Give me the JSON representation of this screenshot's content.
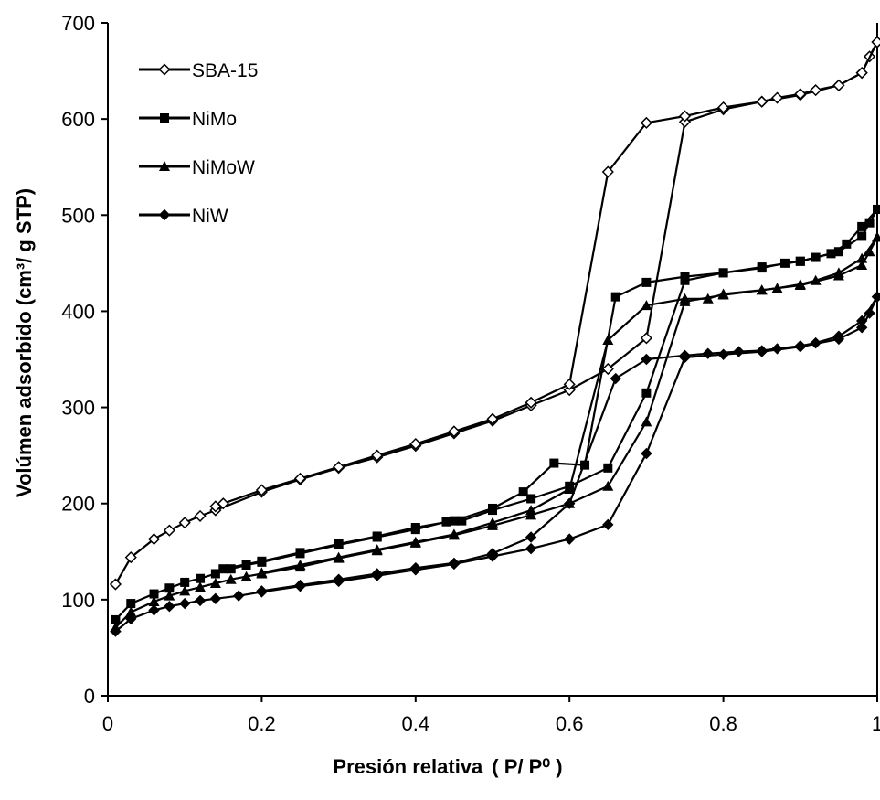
{
  "chart_data": {
    "type": "scatter",
    "xlabel": "Presión relativa",
    "xlabel_units": "( P/ P⁰ )",
    "ylabel": "Volúmen adsorbido (cm³/ g STP)",
    "xlim": [
      0,
      1
    ],
    "ylim": [
      0,
      700
    ],
    "xticks": [
      "0",
      "0.2",
      "0.4",
      "0.6",
      "0.8",
      "1"
    ],
    "yticks": [
      "0",
      "100",
      "200",
      "300",
      "400",
      "500",
      "600",
      "700"
    ],
    "grid": false,
    "legend_position": "top-left",
    "series": [
      {
        "name": "SBA-15",
        "marker": "open-diamond",
        "adsorption": [
          [
            0.01,
            116
          ],
          [
            0.03,
            144
          ],
          [
            0.06,
            163
          ],
          [
            0.08,
            172
          ],
          [
            0.1,
            180
          ],
          [
            0.12,
            187
          ],
          [
            0.14,
            193
          ],
          [
            0.2,
            212
          ],
          [
            0.25,
            225
          ],
          [
            0.3,
            237
          ],
          [
            0.35,
            248
          ],
          [
            0.4,
            260
          ],
          [
            0.45,
            273
          ],
          [
            0.5,
            286
          ],
          [
            0.55,
            302
          ],
          [
            0.6,
            318
          ],
          [
            0.65,
            340
          ],
          [
            0.7,
            372
          ],
          [
            0.75,
            597
          ],
          [
            0.8,
            610
          ],
          [
            0.85,
            618
          ],
          [
            0.9,
            625
          ],
          [
            0.95,
            635
          ],
          [
            0.98,
            648
          ],
          [
            0.99,
            665
          ],
          [
            1.0,
            680
          ]
        ],
        "desorption": [
          [
            1.0,
            680
          ],
          [
            0.98,
            648
          ],
          [
            0.95,
            635
          ],
          [
            0.92,
            630
          ],
          [
            0.9,
            626
          ],
          [
            0.87,
            622
          ],
          [
            0.85,
            618
          ],
          [
            0.8,
            612
          ],
          [
            0.75,
            603
          ],
          [
            0.7,
            596
          ],
          [
            0.65,
            545
          ],
          [
            0.6,
            324
          ],
          [
            0.55,
            305
          ],
          [
            0.5,
            288
          ],
          [
            0.45,
            275
          ],
          [
            0.4,
            262
          ],
          [
            0.35,
            250
          ],
          [
            0.3,
            238
          ],
          [
            0.25,
            226
          ],
          [
            0.2,
            214
          ],
          [
            0.15,
            200
          ],
          [
            0.14,
            197
          ]
        ]
      },
      {
        "name": "NiMo",
        "marker": "filled-square",
        "adsorption": [
          [
            0.01,
            79
          ],
          [
            0.03,
            96
          ],
          [
            0.06,
            106
          ],
          [
            0.08,
            112
          ],
          [
            0.1,
            118
          ],
          [
            0.12,
            122
          ],
          [
            0.14,
            127
          ],
          [
            0.16,
            132
          ],
          [
            0.18,
            136
          ],
          [
            0.2,
            139
          ],
          [
            0.25,
            148
          ],
          [
            0.3,
            157
          ],
          [
            0.35,
            165
          ],
          [
            0.4,
            173
          ],
          [
            0.44,
            181
          ],
          [
            0.46,
            182
          ],
          [
            0.5,
            193
          ],
          [
            0.55,
            205
          ],
          [
            0.6,
            218
          ],
          [
            0.65,
            237
          ],
          [
            0.7,
            315
          ],
          [
            0.75,
            432
          ],
          [
            0.8,
            440
          ],
          [
            0.85,
            446
          ],
          [
            0.9,
            452
          ],
          [
            0.95,
            462
          ],
          [
            0.98,
            478
          ],
          [
            0.99,
            492
          ],
          [
            1.0,
            506
          ]
        ],
        "desorption": [
          [
            1.0,
            506
          ],
          [
            0.98,
            488
          ],
          [
            0.96,
            470
          ],
          [
            0.94,
            460
          ],
          [
            0.92,
            456
          ],
          [
            0.9,
            452
          ],
          [
            0.88,
            450
          ],
          [
            0.85,
            445
          ],
          [
            0.8,
            440
          ],
          [
            0.75,
            436
          ],
          [
            0.7,
            430
          ],
          [
            0.66,
            415
          ],
          [
            0.62,
            240
          ],
          [
            0.58,
            242
          ],
          [
            0.54,
            212
          ],
          [
            0.5,
            195
          ],
          [
            0.45,
            182
          ],
          [
            0.4,
            175
          ],
          [
            0.35,
            166
          ],
          [
            0.3,
            158
          ],
          [
            0.25,
            149
          ],
          [
            0.2,
            140
          ],
          [
            0.15,
            132
          ]
        ]
      },
      {
        "name": "NiMoW",
        "marker": "filled-triangle",
        "adsorption": [
          [
            0.01,
            71
          ],
          [
            0.03,
            87
          ],
          [
            0.06,
            98
          ],
          [
            0.08,
            104
          ],
          [
            0.1,
            109
          ],
          [
            0.12,
            113
          ],
          [
            0.14,
            117
          ],
          [
            0.16,
            121
          ],
          [
            0.18,
            124
          ],
          [
            0.2,
            127
          ],
          [
            0.25,
            134
          ],
          [
            0.3,
            143
          ],
          [
            0.35,
            151
          ],
          [
            0.4,
            159
          ],
          [
            0.45,
            167
          ],
          [
            0.5,
            177
          ],
          [
            0.55,
            188
          ],
          [
            0.6,
            200
          ],
          [
            0.65,
            218
          ],
          [
            0.7,
            285
          ],
          [
            0.75,
            410
          ],
          [
            0.8,
            417
          ],
          [
            0.85,
            422
          ],
          [
            0.9,
            427
          ],
          [
            0.95,
            437
          ],
          [
            0.98,
            448
          ],
          [
            0.99,
            462
          ],
          [
            1.0,
            477
          ]
        ],
        "desorption": [
          [
            1.0,
            477
          ],
          [
            0.98,
            455
          ],
          [
            0.95,
            440
          ],
          [
            0.92,
            432
          ],
          [
            0.9,
            428
          ],
          [
            0.87,
            424
          ],
          [
            0.85,
            422
          ],
          [
            0.8,
            418
          ],
          [
            0.78,
            413
          ],
          [
            0.75,
            413
          ],
          [
            0.7,
            406
          ],
          [
            0.65,
            370
          ],
          [
            0.6,
            215
          ],
          [
            0.55,
            193
          ],
          [
            0.5,
            180
          ],
          [
            0.45,
            168
          ],
          [
            0.4,
            160
          ],
          [
            0.35,
            152
          ],
          [
            0.3,
            144
          ],
          [
            0.25,
            136
          ],
          [
            0.2,
            128
          ]
        ]
      },
      {
        "name": "NiW",
        "marker": "filled-diamond",
        "adsorption": [
          [
            0.01,
            67
          ],
          [
            0.03,
            80
          ],
          [
            0.06,
            89
          ],
          [
            0.08,
            93
          ],
          [
            0.1,
            96
          ],
          [
            0.12,
            99
          ],
          [
            0.14,
            101
          ],
          [
            0.17,
            104
          ],
          [
            0.2,
            108
          ],
          [
            0.25,
            114
          ],
          [
            0.3,
            119
          ],
          [
            0.35,
            125
          ],
          [
            0.4,
            131
          ],
          [
            0.45,
            137
          ],
          [
            0.5,
            145
          ],
          [
            0.55,
            153
          ],
          [
            0.6,
            163
          ],
          [
            0.65,
            178
          ],
          [
            0.7,
            252
          ],
          [
            0.75,
            352
          ],
          [
            0.8,
            355
          ],
          [
            0.85,
            358
          ],
          [
            0.9,
            363
          ],
          [
            0.95,
            371
          ],
          [
            0.98,
            383
          ],
          [
            0.99,
            398
          ],
          [
            1.0,
            415
          ]
        ],
        "desorption": [
          [
            1.0,
            415
          ],
          [
            0.98,
            390
          ],
          [
            0.95,
            374
          ],
          [
            0.92,
            367
          ],
          [
            0.9,
            364
          ],
          [
            0.87,
            361
          ],
          [
            0.85,
            359
          ],
          [
            0.82,
            358
          ],
          [
            0.78,
            356
          ],
          [
            0.75,
            354
          ],
          [
            0.7,
            350
          ],
          [
            0.66,
            330
          ],
          [
            0.6,
            200
          ],
          [
            0.55,
            165
          ],
          [
            0.5,
            148
          ],
          [
            0.45,
            138
          ],
          [
            0.4,
            133
          ],
          [
            0.35,
            127
          ],
          [
            0.3,
            121
          ],
          [
            0.25,
            115
          ],
          [
            0.2,
            109
          ]
        ]
      }
    ]
  }
}
